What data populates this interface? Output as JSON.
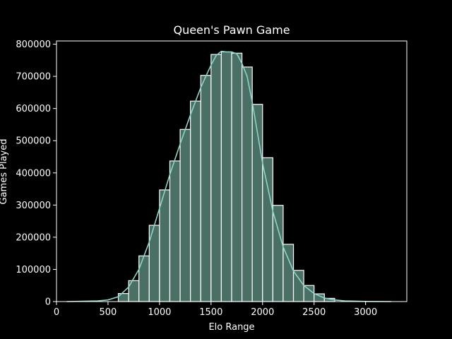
{
  "chart_data": {
    "type": "bar",
    "title": "Queen's Pawn Game",
    "xlabel": "Elo Range",
    "ylabel": "Games Played",
    "xlim": [
      0,
      3400
    ],
    "ylim": [
      0,
      810000
    ],
    "xticks": [
      0,
      500,
      1000,
      1500,
      2000,
      2500,
      3000
    ],
    "yticks": [
      0,
      100000,
      200000,
      300000,
      400000,
      500000,
      600000,
      700000,
      800000
    ],
    "bin_width": 100,
    "bins": [
      {
        "x0": 600,
        "value": 25000
      },
      {
        "x0": 700,
        "value": 65000
      },
      {
        "x0": 800,
        "value": 142000
      },
      {
        "x0": 900,
        "value": 237000
      },
      {
        "x0": 1000,
        "value": 347000
      },
      {
        "x0": 1100,
        "value": 437000
      },
      {
        "x0": 1200,
        "value": 535000
      },
      {
        "x0": 1300,
        "value": 623000
      },
      {
        "x0": 1400,
        "value": 703000
      },
      {
        "x0": 1500,
        "value": 768000
      },
      {
        "x0": 1600,
        "value": 776000
      },
      {
        "x0": 1700,
        "value": 772000
      },
      {
        "x0": 1800,
        "value": 729000
      },
      {
        "x0": 1900,
        "value": 613000
      },
      {
        "x0": 2000,
        "value": 447000
      },
      {
        "x0": 2100,
        "value": 299000
      },
      {
        "x0": 2200,
        "value": 178000
      },
      {
        "x0": 2300,
        "value": 97000
      },
      {
        "x0": 2400,
        "value": 50000
      },
      {
        "x0": 2500,
        "value": 24000
      },
      {
        "x0": 2600,
        "value": 10000
      }
    ],
    "kde": [
      [
        100,
        0
      ],
      [
        400,
        2000
      ],
      [
        500,
        5000
      ],
      [
        600,
        15000
      ],
      [
        700,
        45000
      ],
      [
        800,
        100000
      ],
      [
        900,
        185000
      ],
      [
        1000,
        290000
      ],
      [
        1100,
        395000
      ],
      [
        1200,
        490000
      ],
      [
        1300,
        580000
      ],
      [
        1400,
        665000
      ],
      [
        1500,
        735000
      ],
      [
        1550,
        765000
      ],
      [
        1600,
        778000
      ],
      [
        1650,
        776000
      ],
      [
        1700,
        776000
      ],
      [
        1750,
        770000
      ],
      [
        1800,
        740000
      ],
      [
        1850,
        700000
      ],
      [
        1900,
        620000
      ],
      [
        2000,
        430000
      ],
      [
        2100,
        280000
      ],
      [
        2200,
        170000
      ],
      [
        2300,
        95000
      ],
      [
        2400,
        50000
      ],
      [
        2500,
        25000
      ],
      [
        2600,
        11000
      ],
      [
        2700,
        5000
      ],
      [
        2800,
        2000
      ],
      [
        3000,
        500
      ],
      [
        3250,
        0
      ]
    ],
    "colors": {
      "bar_fill": "#4a7066",
      "bar_edge": "#ffffff",
      "kde_line": "#8dd3c7",
      "axes": "#ffffff",
      "background": "#000000"
    },
    "grid": false,
    "legend": "none"
  }
}
